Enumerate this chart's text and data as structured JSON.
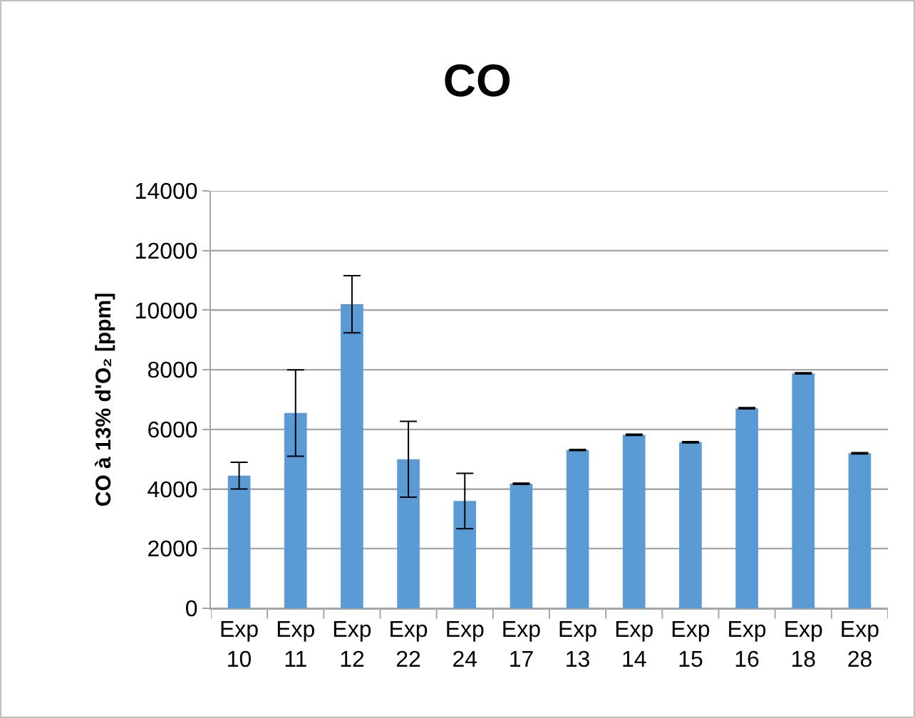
{
  "chart_data": {
    "type": "bar",
    "title": "CO",
    "ylabel": "CO à 13% d'O₂ [ppm]",
    "categories": [
      "Exp 10",
      "Exp 11",
      "Exp 12",
      "Exp 22",
      "Exp 24",
      "Exp 17",
      "Exp 13",
      "Exp 14",
      "Exp 15",
      "Exp 16",
      "Exp 18",
      "Exp 28"
    ],
    "values": [
      4450,
      6550,
      10200,
      5000,
      3600,
      4180,
      5310,
      5820,
      5570,
      6710,
      7880,
      5200
    ],
    "errors": [
      450,
      1450,
      960,
      1270,
      930,
      20,
      20,
      20,
      20,
      20,
      20,
      20
    ],
    "color": "#5b9bd5",
    "ylim": [
      0,
      14000
    ],
    "yticks": [
      0,
      2000,
      4000,
      6000,
      8000,
      10000,
      12000,
      14000
    ],
    "grid": "y"
  }
}
